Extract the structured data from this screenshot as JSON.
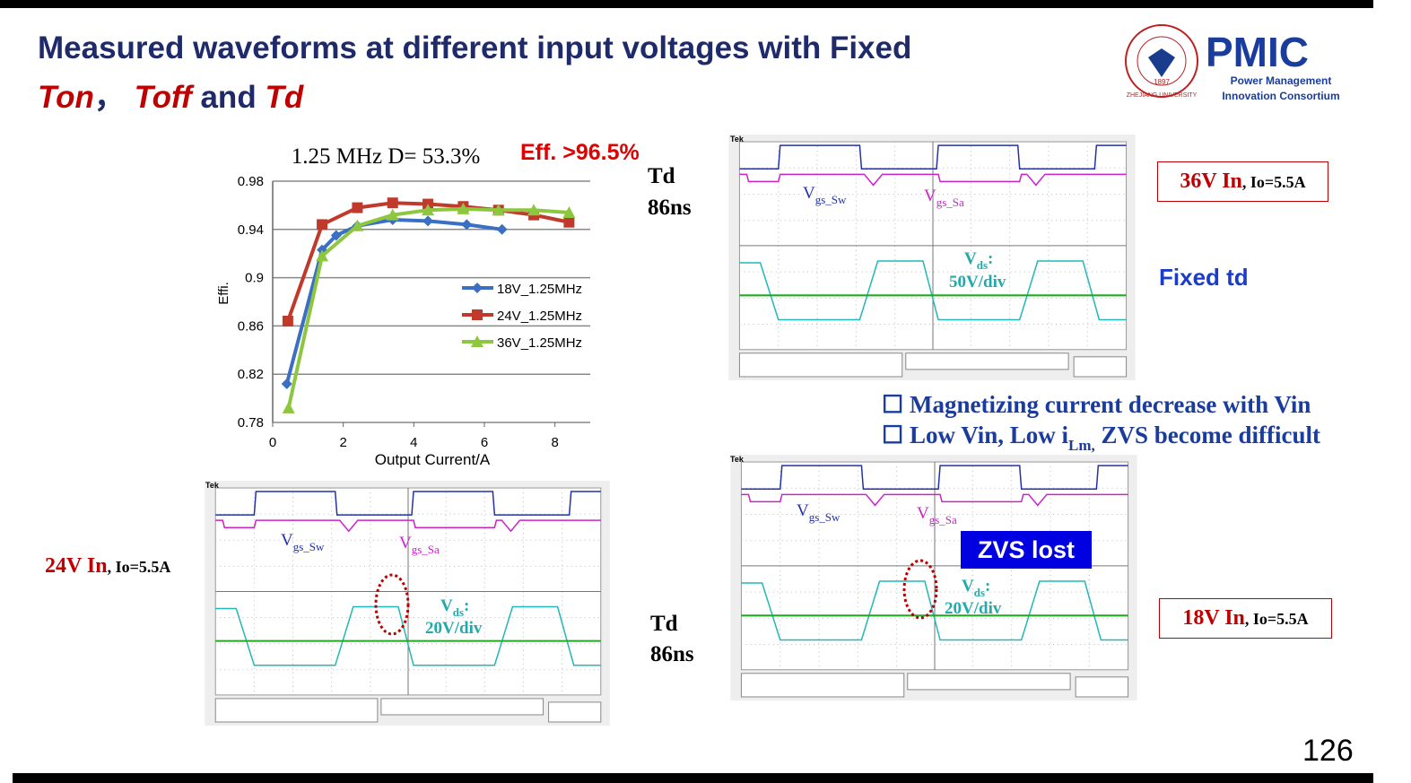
{
  "header": {
    "title_line1": "Measured waveforms at different input voltages with Fixed",
    "ton": "Ton",
    "sep": "，",
    "toff": "Toff",
    "and": "and",
    "td": "Td"
  },
  "logo": {
    "text": "PMIC",
    "line1": "Power Management",
    "line2": "Innovation Consortium",
    "seal_text": "ZHEJIANG UNIVERSITY",
    "seal_year": "1897"
  },
  "chart_data": {
    "type": "line",
    "title": "1.25 MHz  D= 53.3%",
    "annotation": "Eff. >96.5%",
    "xlabel": "Output Current/A",
    "ylabel": "Effi.",
    "xlim": [
      0,
      9
    ],
    "xticks": [
      0,
      2,
      4,
      6,
      8
    ],
    "ylim": [
      0.78,
      0.98
    ],
    "yticks": [
      0.78,
      0.82,
      0.86,
      0.9,
      0.94,
      0.98
    ],
    "grid": true,
    "series": [
      {
        "name": "18V_1.25MHz",
        "color": "#3a6fc4",
        "marker": "diamond",
        "x": [
          0.4,
          1.4,
          1.8,
          2.4,
          3.4,
          4.4,
          5.5,
          6.5
        ],
        "values": [
          0.812,
          0.923,
          0.935,
          0.943,
          0.948,
          0.947,
          0.944,
          0.94
        ]
      },
      {
        "name": "24V_1.25MHz",
        "color": "#c0392b",
        "marker": "square",
        "x": [
          0.43,
          1.4,
          2.4,
          3.4,
          4.4,
          5.4,
          6.4,
          7.4,
          8.4
        ],
        "values": [
          0.864,
          0.944,
          0.958,
          0.962,
          0.961,
          0.959,
          0.956,
          0.952,
          0.946
        ]
      },
      {
        "name": "36V_1.25MHz",
        "color": "#8dc63f",
        "marker": "triangle",
        "x": [
          0.45,
          1.4,
          2.4,
          3.4,
          4.4,
          5.4,
          6.4,
          7.4,
          8.4
        ],
        "values": [
          0.792,
          0.918,
          0.943,
          0.952,
          0.956,
          0.957,
          0.956,
          0.956,
          0.954
        ]
      }
    ]
  },
  "annotations": {
    "td_top": "Td",
    "td_top_value": "86ns",
    "td_bottom": "Td",
    "td_bottom_value": "86ns",
    "fixed_td": "Fixed td",
    "zvs_lost": "ZVS lost"
  },
  "scopes": [
    {
      "brand": "Tek",
      "input": "36V In",
      "load": ", Io=5.5A",
      "v1": "V",
      "gs_sw": "gs_Sw",
      "v2": "V",
      "gs_sa": "gs_Sa",
      "v3": "V",
      "ds": "ds",
      "colon": ":",
      "scale": "50V/div"
    },
    {
      "brand": "Tek",
      "input": "24V In",
      "load": ", Io=5.5A",
      "v1": "V",
      "gs_sw": "gs_Sw",
      "v2": "V",
      "gs_sa": "gs_Sa",
      "v3": "V",
      "ds": "ds",
      "colon": ":",
      "scale": "20V/div"
    },
    {
      "brand": "Tek",
      "input": "18V In",
      "load": ", Io=5.5A",
      "v1": "V",
      "gs_sw": "gs_Sw",
      "v2": "V",
      "gs_sa": "gs_Sa",
      "v3": "V",
      "ds": "ds",
      "colon": ":",
      "scale": "20V/div"
    }
  ],
  "bullets": [
    {
      "text": "Magnetizing current decrease with Vin"
    },
    {
      "pre": "Low Vin, Low i",
      "sub": "Lm,",
      "post": " ZVS become difficult"
    }
  ],
  "page_number": "126"
}
